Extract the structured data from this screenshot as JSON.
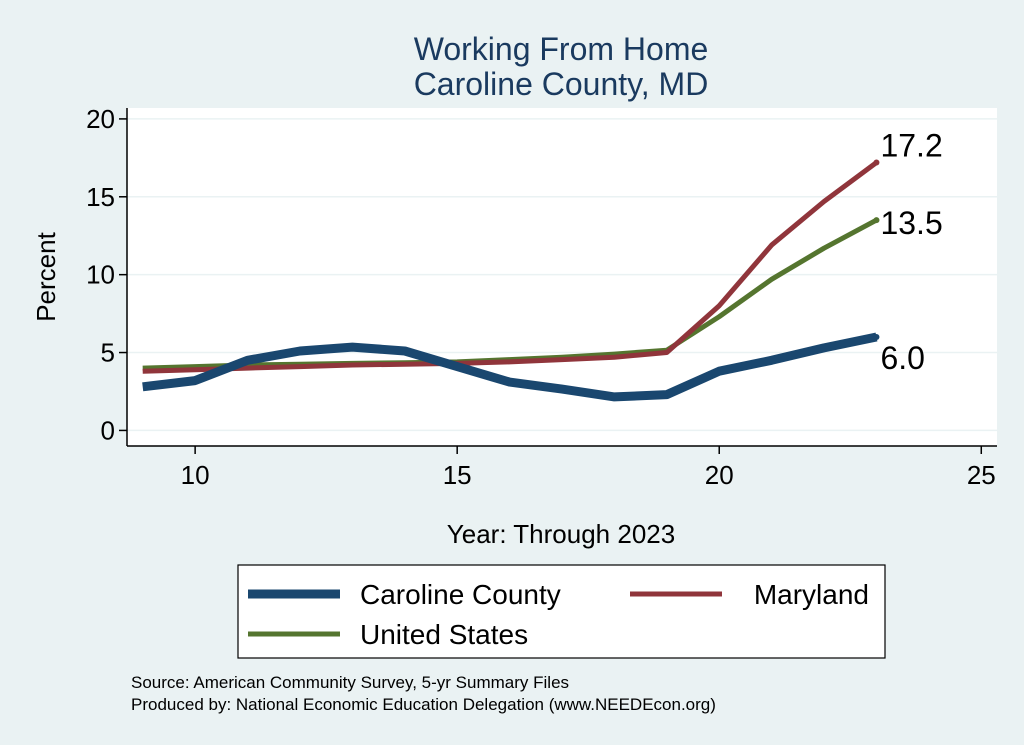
{
  "chart_data": {
    "type": "line",
    "title": "Working From Home",
    "subtitle": "Caroline County, MD",
    "xlabel": "Year: Through 2023",
    "ylabel": "Percent",
    "xlim": [
      8.7,
      25.3
    ],
    "ylim": [
      -1,
      20.7
    ],
    "xticks": [
      10,
      15,
      20,
      25
    ],
    "yticks": [
      0,
      5,
      10,
      15,
      20
    ],
    "grid": true,
    "legend_placement": "bottom",
    "x": [
      9,
      10,
      11,
      12,
      13,
      14,
      15,
      16,
      17,
      18,
      19,
      20,
      21,
      22,
      23
    ],
    "series": [
      {
        "name": "Caroline County",
        "color": "#1a476f",
        "values": [
          2.8,
          3.2,
          4.5,
          5.1,
          5.35,
          5.1,
          4.1,
          3.1,
          2.65,
          2.15,
          2.3,
          3.8,
          4.5,
          5.3,
          6.0
        ],
        "end_label": "6.0"
      },
      {
        "name": "Maryland",
        "color": "#90353b",
        "values": [
          3.8,
          3.9,
          4.0,
          4.1,
          4.2,
          4.25,
          4.3,
          4.4,
          4.55,
          4.7,
          5.0,
          8.0,
          11.9,
          14.7,
          17.2
        ],
        "end_label": "17.2"
      },
      {
        "name": "United States",
        "color": "#55752f",
        "values": [
          4.0,
          4.1,
          4.2,
          4.25,
          4.3,
          4.35,
          4.4,
          4.55,
          4.7,
          4.9,
          5.15,
          7.3,
          9.7,
          11.7,
          13.5
        ],
        "end_label": "13.5"
      }
    ]
  },
  "source_lines": [
    "Source: American Community Survey, 5-yr Summary Files",
    "Produced by: National Economic Education Delegation (www.NEEDEcon.org)"
  ]
}
